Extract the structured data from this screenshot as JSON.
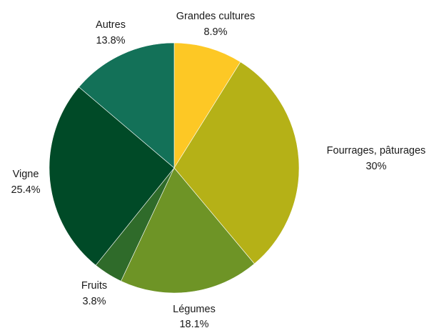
{
  "chart_data": {
    "type": "pie",
    "slices": [
      {
        "label": "Grandes cultures",
        "value_label": "8.9%",
        "value": 8.9,
        "color": "#fdc825"
      },
      {
        "label": "Fourrages, pâturages",
        "value_label": "30%",
        "value": 30.0,
        "color": "#b5b117"
      },
      {
        "label": "Légumes",
        "value_label": "18.1%",
        "value": 18.1,
        "color": "#6e9426"
      },
      {
        "label": "Fruits",
        "value_label": "3.8%",
        "value": 3.8,
        "color": "#2f6b2a"
      },
      {
        "label": "Vigne",
        "value_label": "25.4%",
        "value": 25.4,
        "color": "#004a27"
      },
      {
        "label": "Autres",
        "value_label": "13.8%",
        "value": 13.8,
        "color": "#137158"
      }
    ]
  }
}
